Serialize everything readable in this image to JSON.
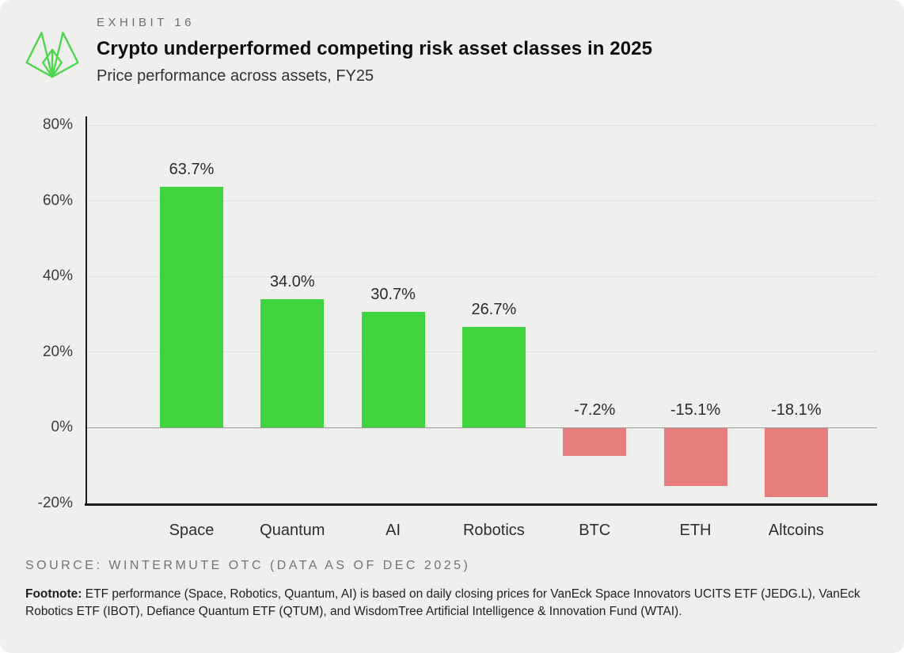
{
  "header": {
    "exhibit": "EXHIBIT 16",
    "title": "Crypto underperformed competing risk asset classes in 2025",
    "subtitle": "Price performance across assets, FY25",
    "logo_color": "#4bd64b"
  },
  "chart_data": {
    "type": "bar",
    "categories": [
      "Space",
      "Quantum",
      "AI",
      "Robotics",
      "BTC",
      "ETH",
      "Altcoins"
    ],
    "values": [
      63.7,
      34.0,
      30.7,
      26.7,
      -7.2,
      -15.1,
      -18.1
    ],
    "value_labels": [
      "63.7%",
      "34.0%",
      "30.7%",
      "26.7%",
      "-7.2%",
      "-15.1%",
      "-18.1%"
    ],
    "title": "Crypto underperformed competing risk asset classes in 2025",
    "subtitle": "Price performance across assets, FY25",
    "xlabel": "",
    "ylabel": "",
    "ylim": [
      -20,
      80
    ],
    "yticks": [
      80,
      60,
      40,
      20,
      0,
      -20
    ],
    "ytick_labels": [
      "80%",
      "60%",
      "40%",
      "20%",
      "0%",
      "-20%"
    ],
    "grid": "horizontal",
    "legend": "none",
    "colors": {
      "positive": "#3fd43e",
      "negative": "#e87d7d",
      "axis": "#1c1c1c",
      "gridline": "#e0e0de",
      "zero_line": "#9b9b9b"
    }
  },
  "footer": {
    "source": "SOURCE: WINTERMUTE OTC (DATA AS OF DEC 2025)",
    "footnote_label": "Footnote:",
    "footnote_text": " ETF performance (Space, Robotics, Quantum, AI) is based on daily closing prices for VanEck Space Innovators UCITS ETF (JEDG.L), VanEck Robotics ETF (IBOT), Defiance Quantum ETF (QTUM), and WisdomTree Artificial Intelligence & Innovation Fund (WTAI)."
  }
}
